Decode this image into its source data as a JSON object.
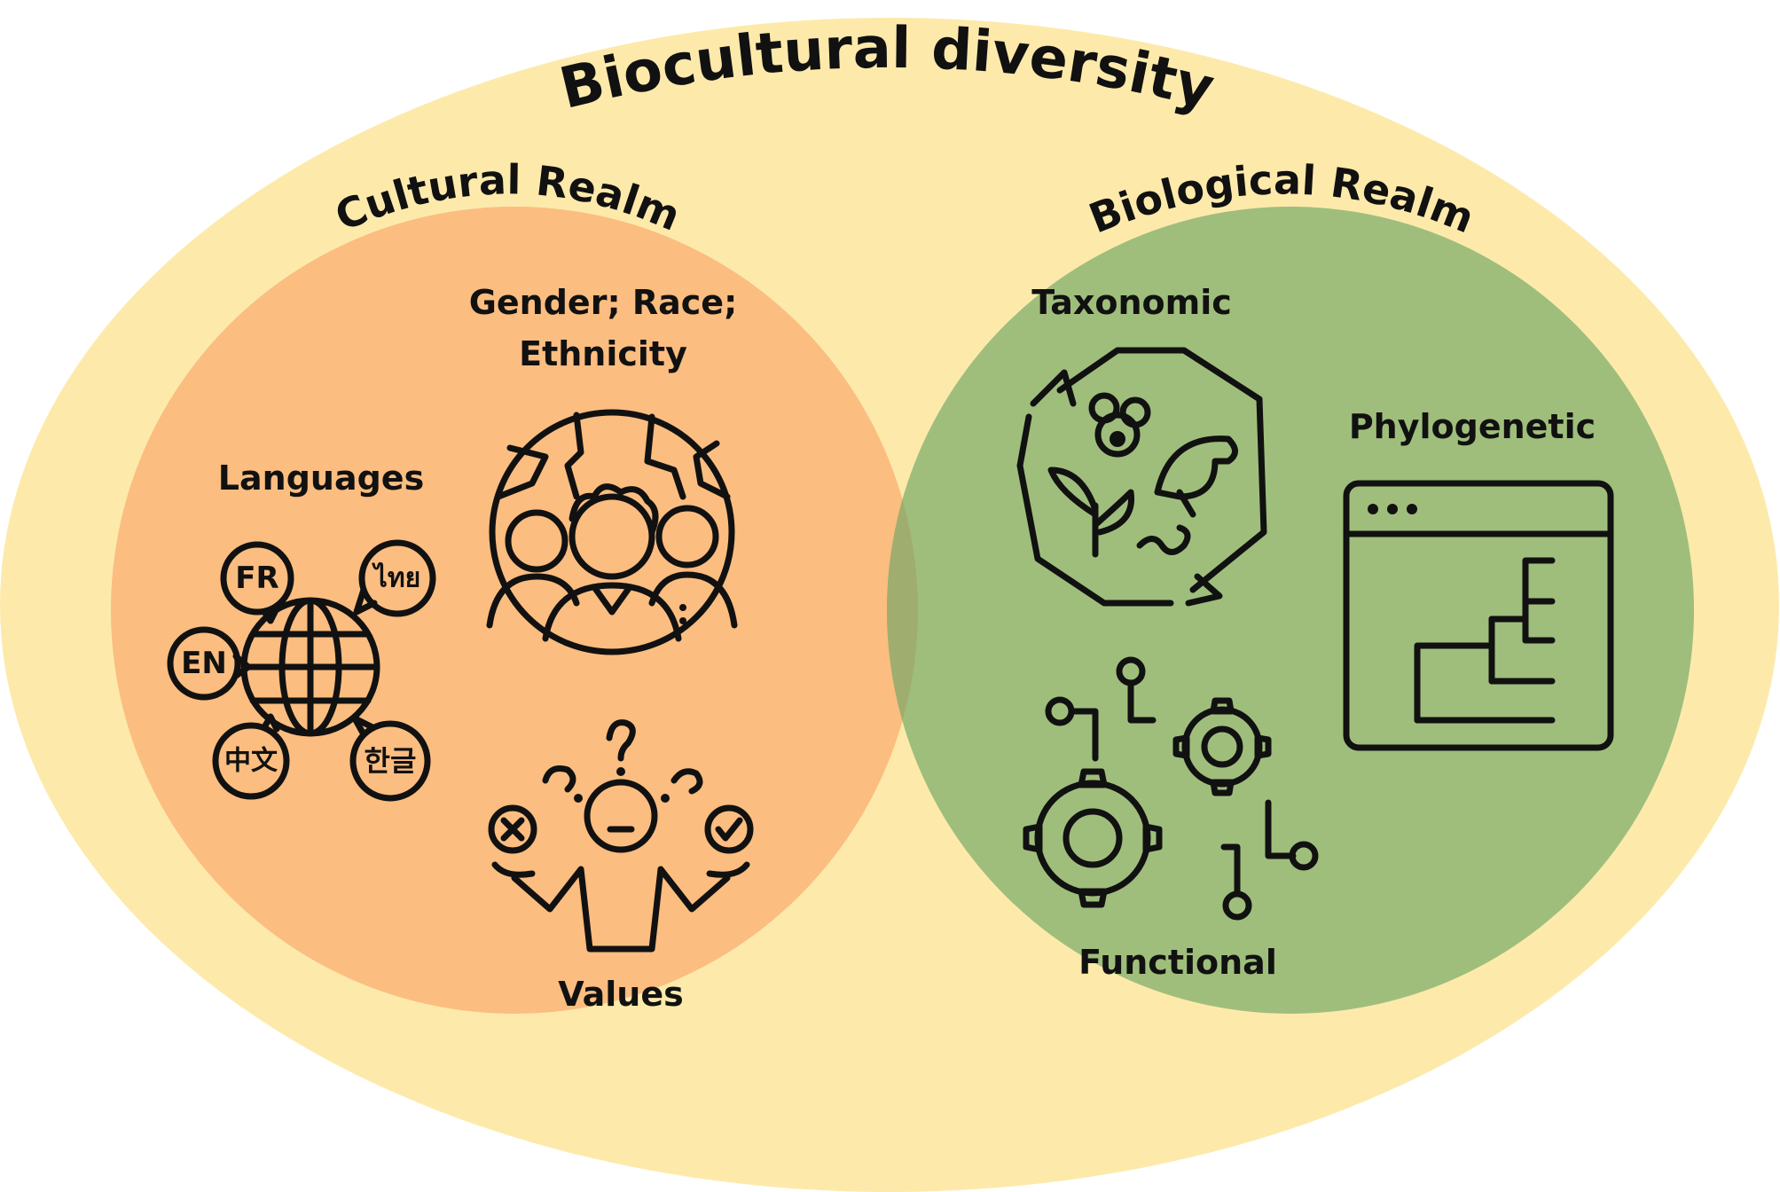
{
  "title": "Biocultural diversity",
  "colors": {
    "outer": "#fdeaab",
    "cultural": "#fbbd80",
    "biological": "#9fbe7c",
    "overlap": "#9fae6e",
    "ink": "#111111"
  },
  "cultural_realm": {
    "title": "Cultural Realm",
    "gender_label_line1": "Gender; Race;",
    "gender_label_line2": "Ethnicity",
    "languages_label": "Languages",
    "values_label": "Values",
    "language_bubbles": {
      "fr": "FR",
      "thai": "ไทย",
      "en": "EN",
      "zh": "中文",
      "ko": "한글"
    },
    "icons": [
      "globe-people-icon",
      "languages-globe-icon",
      "person-dilemma-icon"
    ]
  },
  "biological_realm": {
    "title": "Biological Realm",
    "taxonomic_label": "Taxonomic",
    "phylogenetic_label": "Phylogenetic",
    "functional_label": "Functional",
    "icons": [
      "biodiversity-cycle-icon",
      "phylogeny-window-icon",
      "gears-circuit-icon"
    ]
  }
}
